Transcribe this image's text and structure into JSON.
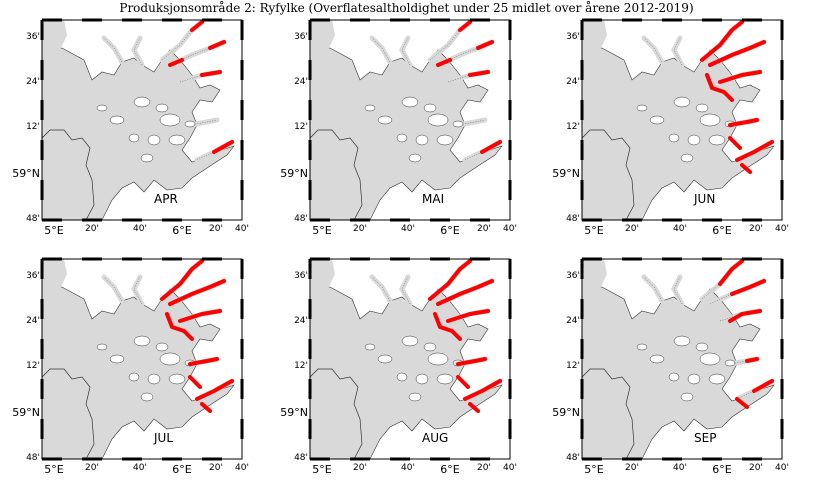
{
  "title": "Produksjonsområde 2: Ryfylke (Overflatesaltholdighet under 25 midlet over årene 2012-2019)",
  "colors": {
    "sea": "#d9d9d9",
    "land": "#ffffff",
    "coast": "#333333",
    "low_salinity": "#ff0000"
  },
  "axes": {
    "lat_ticks": [
      "36'",
      "24'",
      "12'",
      "59°N",
      "48'"
    ],
    "lon_ticks": [
      "5°E",
      "20'",
      "40'",
      "6°E",
      "20'",
      "40'"
    ]
  },
  "panels": [
    {
      "month": "APR",
      "low_salinity_extent": "small"
    },
    {
      "month": "MAI",
      "low_salinity_extent": "small"
    },
    {
      "month": "JUN",
      "low_salinity_extent": "large"
    },
    {
      "month": "JUL",
      "low_salinity_extent": "large"
    },
    {
      "month": "AUG",
      "low_salinity_extent": "large"
    },
    {
      "month": "SEP",
      "low_salinity_extent": "medium"
    }
  ]
}
